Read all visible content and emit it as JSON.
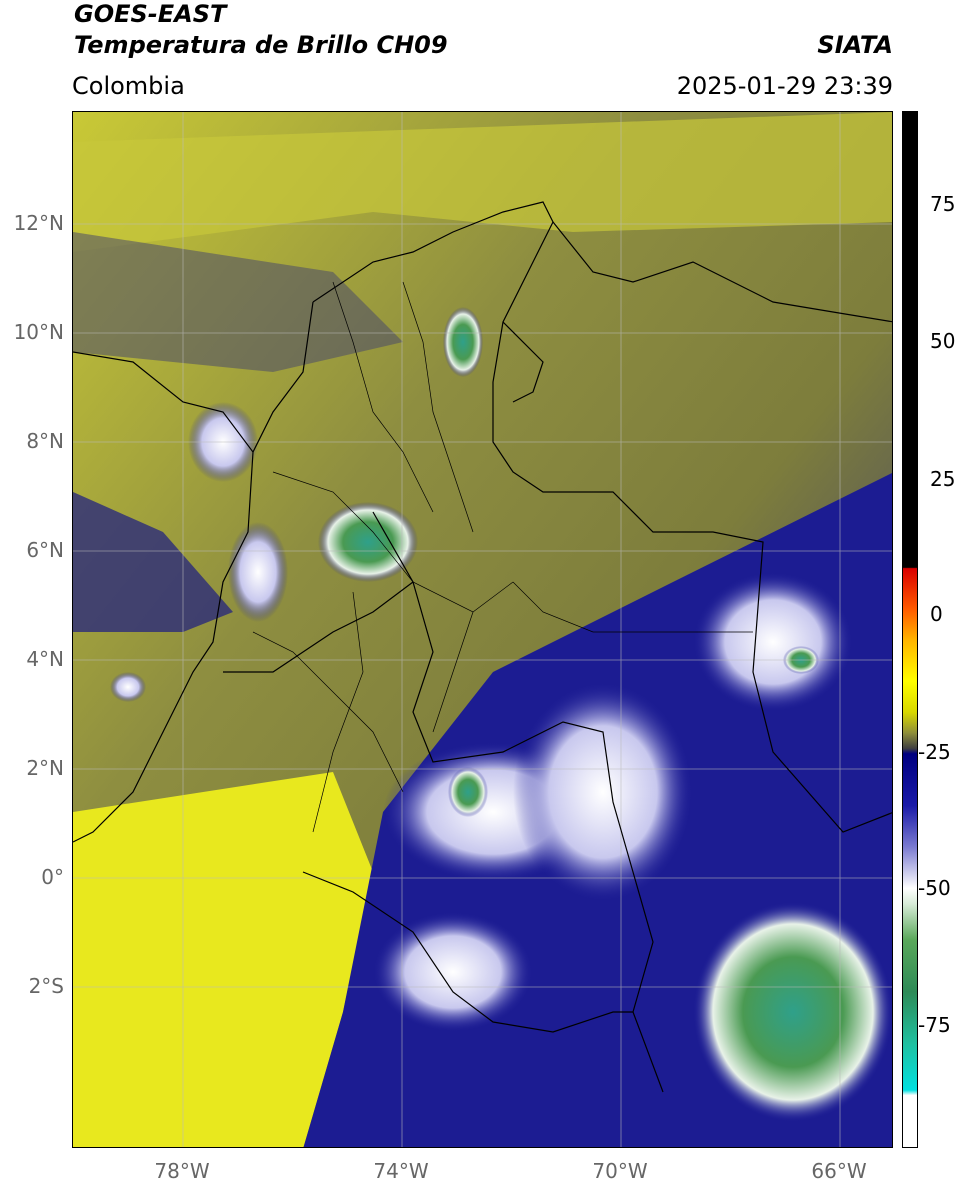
{
  "header": {
    "title_line1": "GOES-EAST",
    "title_line2": "Temperatura de Brillo CH09",
    "region": "Colombia",
    "brand": "SIATA",
    "timestamp": "2025-01-29 23:39"
  },
  "map": {
    "lat_ticks": [
      "12°N",
      "10°N",
      "8°N",
      "6°N",
      "4°N",
      "2°N",
      "0°",
      "2°S"
    ],
    "lon_ticks": [
      "78°W",
      "74°W",
      "70°W",
      "66°W"
    ],
    "extent": {
      "lon_min": -80,
      "lon_max": -65,
      "lat_min": -5,
      "lat_max": 14
    },
    "grid": true,
    "borders": "country and department boundaries in black"
  },
  "colorbar": {
    "ticks": [
      "75",
      "50",
      "25",
      "0",
      "-25",
      "-50",
      "-75"
    ],
    "colors": {
      "warm": "#000000",
      "red": "#ff0000",
      "yellow": "#ffff00",
      "gray": "#404040",
      "navy": "#000080",
      "white": "#ffffff",
      "green": "#2e8b57",
      "cyan": "#00e0e0"
    }
  }
}
